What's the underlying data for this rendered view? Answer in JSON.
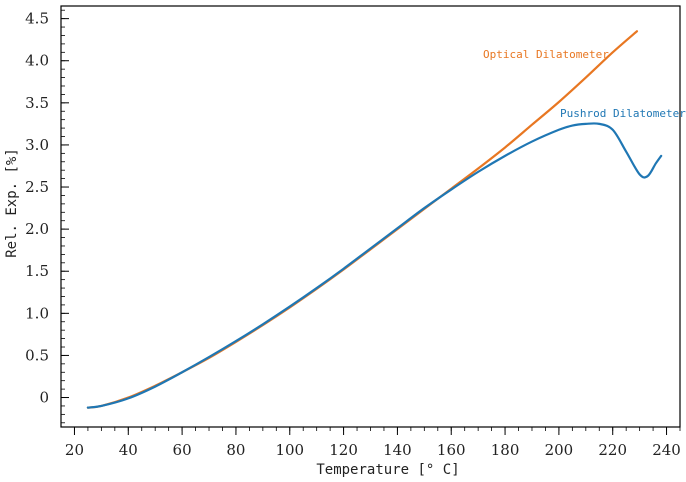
{
  "chart_data": {
    "type": "line",
    "title": "",
    "xlabel": "Temperature [° C]",
    "ylabel": "Rel. Exp. [%]",
    "xlim": [
      15,
      245
    ],
    "ylim": [
      -0.35,
      4.65
    ],
    "x_ticks": [
      20,
      40,
      60,
      80,
      100,
      120,
      140,
      160,
      180,
      200,
      220,
      240
    ],
    "x_tick_labels": [
      "20",
      "40",
      "60",
      "80",
      "100",
      "120",
      "140",
      "160",
      "180",
      "200",
      "220",
      "240"
    ],
    "y_ticks": [
      0,
      0.5,
      1.0,
      1.5,
      2.0,
      2.5,
      3.0,
      3.5,
      4.0,
      4.5
    ],
    "y_tick_labels": [
      "0",
      "0.5",
      "1.0",
      "1.5",
      "2.0",
      "2.5",
      "3.0",
      "3.5",
      "4.0",
      "4.5"
    ],
    "grid": false,
    "series": [
      {
        "name": "Optical Dilatometer",
        "color": "#E87722",
        "x": [
          25,
          30,
          40,
          50,
          60,
          70,
          80,
          90,
          100,
          110,
          120,
          130,
          140,
          150,
          160,
          170,
          180,
          190,
          200,
          210,
          220,
          229
        ],
        "y": [
          -0.12,
          -0.1,
          0.0,
          0.14,
          0.3,
          0.47,
          0.66,
          0.86,
          1.07,
          1.29,
          1.52,
          1.76,
          2.0,
          2.24,
          2.48,
          2.72,
          2.97,
          3.24,
          3.51,
          3.8,
          4.1,
          4.35
        ]
      },
      {
        "name": "Pushrod Dilatometer",
        "color": "#1F77B4",
        "x": [
          25,
          30,
          40,
          50,
          60,
          70,
          80,
          90,
          100,
          110,
          120,
          130,
          140,
          150,
          160,
          170,
          180,
          190,
          200,
          205,
          210,
          215,
          220,
          225,
          230,
          233,
          236,
          238
        ],
        "y": [
          -0.12,
          -0.1,
          -0.01,
          0.13,
          0.3,
          0.48,
          0.67,
          0.87,
          1.08,
          1.3,
          1.53,
          1.77,
          2.01,
          2.25,
          2.47,
          2.68,
          2.87,
          3.04,
          3.18,
          3.23,
          3.25,
          3.25,
          3.18,
          2.92,
          2.65,
          2.63,
          2.78,
          2.87
        ]
      }
    ]
  }
}
